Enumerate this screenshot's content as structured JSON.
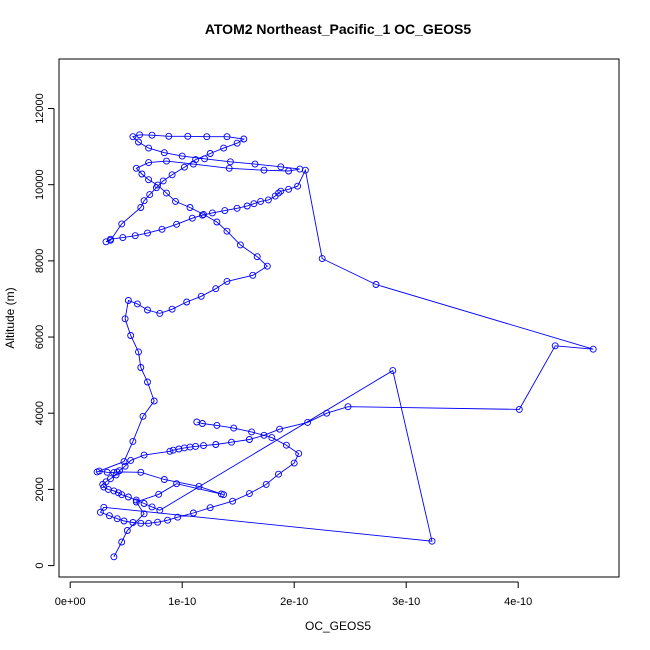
{
  "chart_data": {
    "type": "line",
    "title": "ATOM2 Northeast_Pacific_1 OC_GEOS5",
    "xlabel": "OC_GEOS5",
    "ylabel": "Altitude (m)",
    "xlim": [
      -1e-11,
      4.9e-10
    ],
    "ylim": [
      -300,
      13300
    ],
    "x_ticks": [
      0,
      1e-10,
      2e-10,
      3e-10,
      4e-10
    ],
    "x_tick_labels": [
      "0e+00",
      "1e-10",
      "2e-10",
      "3e-10",
      "4e-10"
    ],
    "y_ticks": [
      0,
      2000,
      4000,
      6000,
      8000,
      10000,
      12000
    ],
    "y_tick_labels": [
      "0",
      "2000",
      "4000",
      "6000",
      "8000",
      "10000",
      "12000"
    ],
    "grid": false,
    "legend": "none",
    "series_color": "#0000ff",
    "series": [
      {
        "marker": "open-circle",
        "x": [
          3.9e-11,
          4.6e-11,
          5.1e-11,
          6.6e-11,
          5.9e-11,
          7.9e-11,
          9.5e-11,
          1.35e-10,
          1.37e-10,
          1.15e-10,
          8.4e-11,
          6.3e-11,
          4.2e-11,
          3.9e-11,
          3.3e-11,
          2.6e-11,
          2.4e-11,
          4.8e-11,
          5.6e-11,
          6.5e-11,
          7.5e-11,
          6.9e-11,
          6.3e-11,
          6.1e-11,
          5.4e-11,
          4.9e-11,
          5.2e-11,
          6e-11,
          6.9e-11,
          8e-11,
          9.1e-11,
          1.04e-10,
          1.17e-10,
          1.3e-10,
          1.4e-10,
          1.63e-10,
          1.76e-10,
          1.67e-10,
          1.52e-10,
          1.4e-10,
          1.31e-10,
          1.19e-10,
          1.07e-10,
          9.4e-11,
          8.6e-11,
          7.8e-11,
          7e-11,
          6.4e-11,
          5.9e-11,
          7e-11,
          8.6e-11,
          1.1e-10,
          1.42e-10,
          1.73e-10,
          1.95e-10,
          2.05e-10,
          1.88e-10,
          1.65e-10,
          1.43e-10,
          1.2e-10,
          1e-10,
          8.4e-11,
          7e-11,
          6.1e-11,
          5.6e-11,
          6.2e-11,
          7.3e-11,
          8.8e-11,
          1.05e-10,
          1.22e-10,
          1.4e-10,
          1.55e-10,
          1.49e-10,
          1.37e-10,
          1.25e-10,
          1.12e-10,
          1.02e-10,
          9.1e-11,
          8.3e-11,
          7.7e-11,
          7.1e-11,
          6.6e-11,
          6.3e-11,
          4.6e-11,
          3.6e-11,
          3.2e-11,
          3.6e-11,
          4.7e-11,
          5.8e-11,
          6.9e-11,
          8.2e-11,
          9.5e-11,
          1.09e-10,
          1.18e-10,
          1.27e-10,
          1.38e-10,
          1.49e-10,
          1.58e-10,
          1.64e-10,
          1.7e-10,
          1.77e-10,
          1.83e-10,
          1.86e-10,
          1.88e-10,
          1.95e-10,
          2.03e-10,
          2.1e-10,
          2.25e-10,
          2.73e-10,
          4.67e-10,
          4.33e-10,
          4.01e-10,
          2.48e-10,
          2.29e-10,
          2.12e-10,
          1.87e-10,
          1.73e-10,
          1.6e-10,
          1.44e-10,
          1.3e-10,
          1.19e-10,
          1.12e-10,
          1.07e-10,
          1.02e-10,
          9.7e-11,
          9.2e-11,
          8.9e-11,
          6.6e-11,
          5.4e-11,
          4.9e-11,
          4.4e-11,
          4.1e-11,
          3.6e-11,
          3.2e-11,
          2.9e-11,
          3e-11,
          3.4e-11,
          3.9e-11,
          4.3e-11,
          4.6e-11,
          5.2e-11,
          5.9e-11,
          6.6e-11,
          7.3e-11,
          8e-11,
          2.88e-10,
          3.23e-10,
          3e-11,
          2.7e-11,
          3.5e-11,
          4.2e-11,
          4.8e-11,
          5.6e-11,
          6.3e-11,
          7e-11,
          7.8e-11,
          8.7e-11,
          9.6e-11,
          1.1e-10,
          1.25e-10,
          1.45e-10,
          1.6e-10,
          1.75e-10,
          1.86e-10,
          2e-10,
          2.04e-10,
          1.93e-10,
          1.8e-10,
          1.62e-10,
          1.46e-10,
          1.31e-10,
          1.18e-10,
          1.13e-10
        ],
        "y": [
          230,
          620,
          920,
          1360,
          1670,
          1870,
          2150,
          1880,
          1860,
          2080,
          2260,
          2450,
          2460,
          2440,
          2450,
          2480,
          2460,
          2730,
          3260,
          3920,
          4320,
          4820,
          5200,
          5610,
          6040,
          6480,
          6960,
          6870,
          6710,
          6620,
          6730,
          6920,
          7070,
          7270,
          7460,
          7620,
          7860,
          8110,
          8420,
          8780,
          9020,
          9220,
          9400,
          9560,
          9780,
          9990,
          10130,
          10280,
          10430,
          10580,
          10620,
          10540,
          10430,
          10380,
          10360,
          10410,
          10470,
          10540,
          10600,
          10680,
          10750,
          10840,
          10960,
          11120,
          11260,
          11310,
          11300,
          11270,
          11270,
          11260,
          11260,
          11200,
          11090,
          10960,
          10820,
          10660,
          10460,
          10260,
          10100,
          9920,
          9740,
          9580,
          9400,
          8970,
          8540,
          8500,
          8570,
          8610,
          8660,
          8730,
          8830,
          8960,
          9120,
          9200,
          9260,
          9320,
          9380,
          9440,
          9500,
          9560,
          9600,
          9700,
          9780,
          9830,
          9880,
          9960,
          10380,
          8060,
          7380,
          5680,
          5770,
          4100,
          4170,
          4000,
          3760,
          3580,
          3420,
          3310,
          3240,
          3180,
          3150,
          3130,
          3110,
          3090,
          3060,
          3030,
          3000,
          2900,
          2760,
          2610,
          2490,
          2380,
          2280,
          2200,
          2130,
          2060,
          2000,
          1960,
          1910,
          1860,
          1800,
          1720,
          1630,
          1540,
          1450,
          5120,
          640,
          1530,
          1400,
          1310,
          1230,
          1170,
          1130,
          1110,
          1110,
          1140,
          1190,
          1270,
          1380,
          1520,
          1690,
          1890,
          2130,
          2400,
          2690,
          2940,
          3160,
          3360,
          3510,
          3610,
          3680,
          3730,
          3770
        ]
      }
    ]
  }
}
